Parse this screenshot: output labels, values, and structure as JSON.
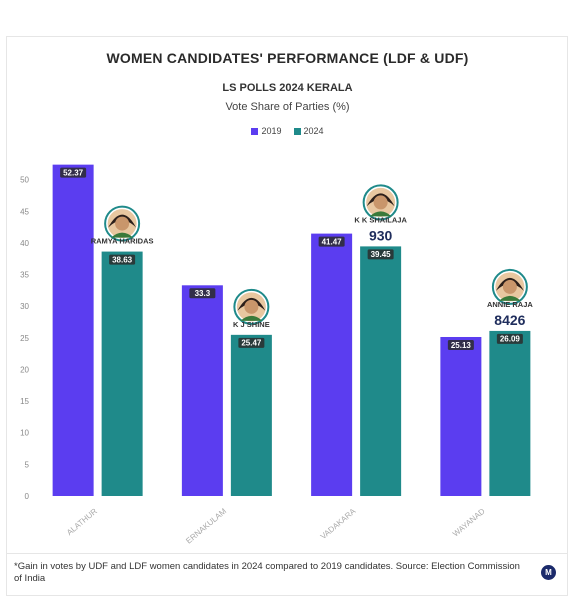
{
  "colors": {
    "y2019": "#5b3df0",
    "y2024": "#1f8a8a",
    "axis_text": "#888888",
    "label_text": "#333333"
  },
  "chart_data": {
    "type": "bar",
    "title": "WOMEN CANDIDATES' PERFORMANCE (LDF & UDF)",
    "subtitle": "LS POLLS 2024 KERALA",
    "ylabel": "Vote Share of Parties (%)",
    "xlabel": "",
    "categories": [
      "ALATHUR",
      "ERNAKULAM",
      "VADAKARA",
      "WAYANAD"
    ],
    "series": [
      {
        "name": "2019",
        "values": [
          52.37,
          33.3,
          41.47,
          25.13
        ]
      },
      {
        "name": "2024",
        "values": [
          38.63,
          25.47,
          39.45,
          26.09
        ]
      }
    ],
    "value_labels": {
      "2019": [
        "52.37",
        "33.3",
        "41.47",
        "25.13"
      ],
      "2024": [
        "38.63",
        "25.47",
        "39.45",
        "26.09"
      ]
    },
    "ylim": [
      0,
      55
    ],
    "yticks": [
      0,
      5,
      10,
      15,
      20,
      25,
      30,
      35,
      40,
      45,
      50
    ],
    "grid": false,
    "legend": "top-center",
    "annotations": [
      {
        "category": "ALATHUR",
        "candidate": "RAMYA HARIDAS",
        "gain": ""
      },
      {
        "category": "ERNAKULAM",
        "candidate": "K J SHINE",
        "gain": ""
      },
      {
        "category": "VADAKARA",
        "candidate": "K K SHAILAJA",
        "gain": "930"
      },
      {
        "category": "WAYANAD",
        "candidate": "ANNIE RAJA",
        "gain": "8426"
      }
    ]
  },
  "footnote": "*Gain in votes by UDF and LDF women candidates in 2024 compared to 2019 candidates. Source: Election Commission of India",
  "logo_letter": "M"
}
